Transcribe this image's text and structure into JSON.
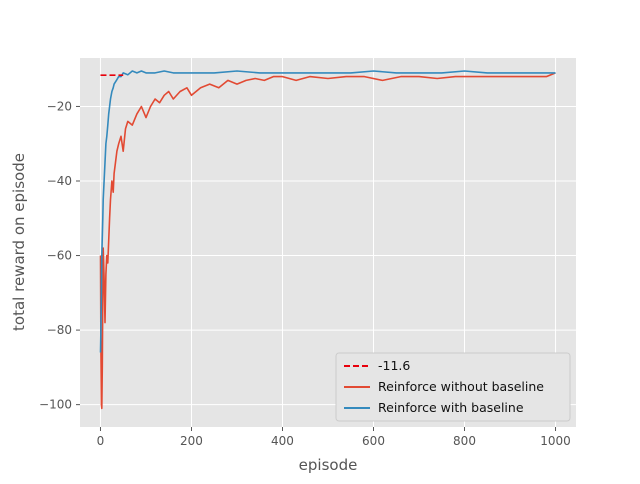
{
  "chart_data": {
    "type": "line",
    "title": "",
    "xlabel": "episode",
    "ylabel": "total reward on episode",
    "xlim": [
      -45,
      1045
    ],
    "ylim": [
      -106,
      -7
    ],
    "xticks": [
      0,
      200,
      400,
      600,
      800,
      1000
    ],
    "yticks": [
      -100,
      -80,
      -60,
      -40,
      -20
    ],
    "grid": true,
    "legend_position": "lower-right",
    "reference_line": {
      "name": "-11.6",
      "y": -11.6,
      "x": [
        0,
        50
      ],
      "color": "#e8000b",
      "style": "dashed"
    },
    "series": [
      {
        "name": "Reinforce without baseline",
        "color": "#e24a33",
        "x": [
          0,
          1,
          2,
          3,
          4,
          5,
          6,
          8,
          10,
          12,
          14,
          16,
          18,
          20,
          22,
          25,
          28,
          30,
          33,
          36,
          40,
          45,
          50,
          55,
          60,
          70,
          80,
          90,
          100,
          110,
          120,
          130,
          140,
          150,
          160,
          175,
          190,
          200,
          220,
          240,
          260,
          280,
          300,
          320,
          340,
          360,
          380,
          400,
          430,
          460,
          500,
          540,
          580,
          620,
          660,
          700,
          740,
          780,
          820,
          860,
          900,
          940,
          980,
          1000
        ],
        "y": [
          -60,
          -85,
          -100,
          -101,
          -90,
          -70,
          -58,
          -66,
          -78,
          -65,
          -60,
          -62,
          -56,
          -50,
          -45,
          -40,
          -43,
          -38,
          -35,
          -32,
          -30,
          -28,
          -32,
          -26,
          -24,
          -25,
          -22,
          -20,
          -23,
          -20,
          -18,
          -19,
          -17,
          -16,
          -18,
          -16,
          -15,
          -17,
          -15,
          -14,
          -15,
          -13,
          -14,
          -13,
          -12.5,
          -13,
          -12,
          -12,
          -13,
          -12,
          -12.5,
          -12,
          -12,
          -13,
          -12,
          -12,
          -12.5,
          -12,
          -12,
          -12,
          -12,
          -12,
          -12,
          -11
        ]
      },
      {
        "name": "Reinforce with baseline",
        "color": "#348abd",
        "x": [
          0,
          1,
          2,
          3,
          4,
          5,
          6,
          8,
          10,
          12,
          14,
          16,
          18,
          20,
          22,
          25,
          28,
          30,
          35,
          40,
          45,
          50,
          60,
          70,
          80,
          90,
          100,
          120,
          140,
          160,
          180,
          200,
          250,
          300,
          350,
          400,
          450,
          500,
          550,
          600,
          650,
          700,
          750,
          800,
          850,
          900,
          950,
          1000
        ],
        "y": [
          -86,
          -80,
          -70,
          -60,
          -55,
          -50,
          -45,
          -40,
          -35,
          -30,
          -28,
          -25,
          -22,
          -20,
          -18,
          -16,
          -15,
          -14,
          -13,
          -12,
          -12,
          -11,
          -11.5,
          -10.5,
          -11,
          -10.5,
          -11,
          -11,
          -10.5,
          -11,
          -11,
          -11,
          -11,
          -10.5,
          -11,
          -11,
          -11,
          -11,
          -11,
          -10.5,
          -11,
          -11,
          -11,
          -10.5,
          -11,
          -11,
          -11,
          -11
        ]
      }
    ]
  }
}
